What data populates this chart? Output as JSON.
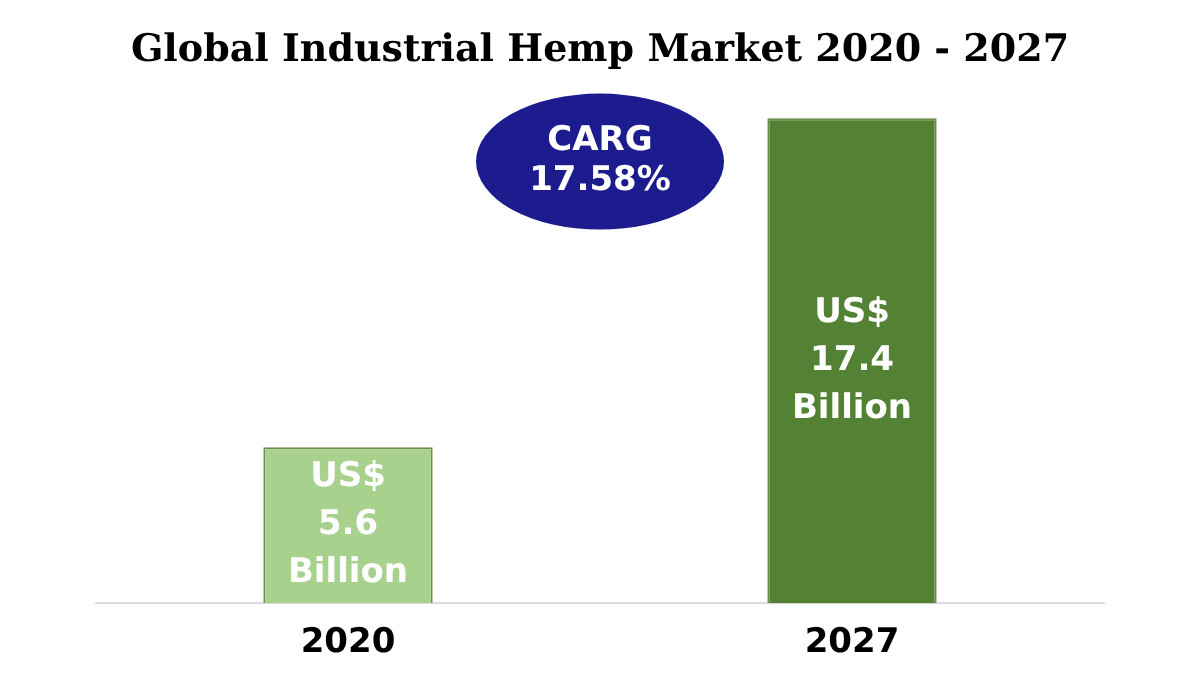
{
  "chart_data": {
    "type": "bar",
    "title": "Global Industrial Hemp Market 2020 - 2027",
    "categories": [
      "2020",
      "2027"
    ],
    "values": [
      5.6,
      17.4
    ],
    "colors": [
      "#a9d18e",
      "#548235"
    ],
    "value_labels": [
      "US$ 5.6 Billion",
      "US$ 17.4 Billion"
    ],
    "annotations": [
      "CARG 17.58%"
    ],
    "grid": false,
    "legend": false
  }
}
